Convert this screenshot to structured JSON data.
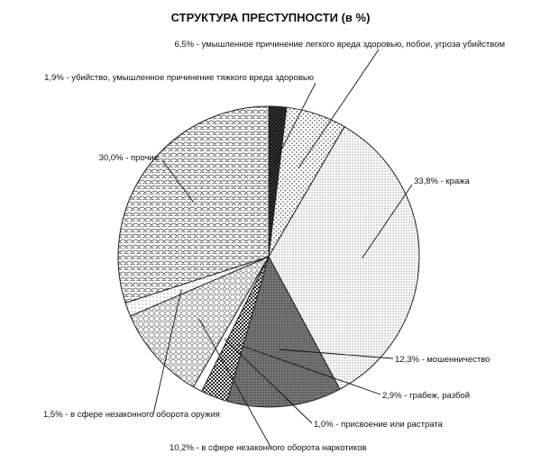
{
  "chart_data": {
    "type": "pie",
    "title": "СТРУКТУРА ПРЕСТУПНОСТИ  (в %)",
    "start": "12 o'clock",
    "direction": "clockwise",
    "slices": [
      {
        "value": 1.9,
        "label": "1,9% - убийство, умышленное причинение тяжкого вреда здоровью",
        "pattern": "dark-crosshatch"
      },
      {
        "value": 6.5,
        "label": "6,5% - умышленное причинение легкого вреда здоровью, побои, угроза убийством",
        "pattern": "dots"
      },
      {
        "value": 33.8,
        "label": "33,8% - кража",
        "pattern": "fine-dots"
      },
      {
        "value": 12.3,
        "label": "12,3% - мошенничество",
        "pattern": "dark-stipple"
      },
      {
        "value": 2.9,
        "label": "2,9% - грабеж, разбой",
        "pattern": "checker"
      },
      {
        "value": 1.0,
        "label": "1,0% - присвоение или растрата",
        "pattern": "white"
      },
      {
        "value": 10.2,
        "label": "10,2% - в сфере незаконного оборота наркотиков",
        "pattern": "diamonds"
      },
      {
        "value": 1.5,
        "label": "1,5% - в сфере незаконного оборота оружия",
        "pattern": "light-dots"
      },
      {
        "value": 30.0,
        "label": "30,0% - прочие",
        "pattern": "scales"
      }
    ]
  }
}
